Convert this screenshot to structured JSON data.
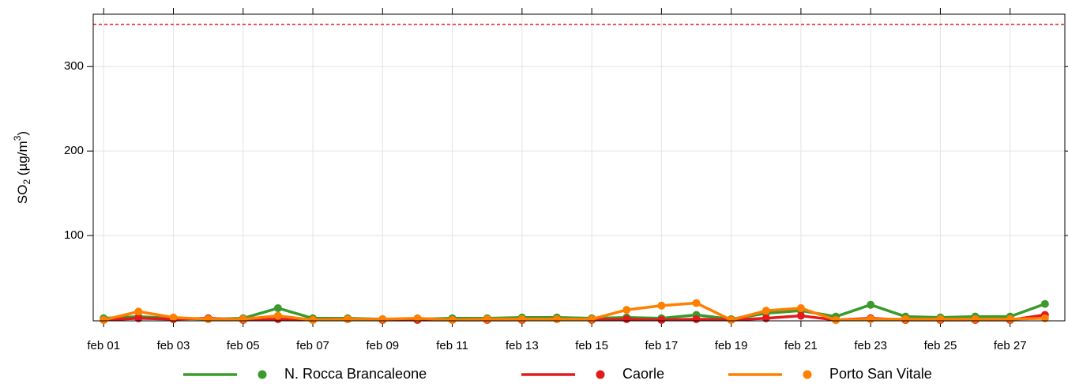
{
  "chart_data": {
    "type": "line",
    "categories": [
      "feb 01",
      null,
      "feb 03",
      null,
      "feb 05",
      null,
      "feb 07",
      null,
      "feb 09",
      null,
      "feb 11",
      null,
      "feb 13",
      null,
      "feb 15",
      null,
      "feb 17",
      null,
      "feb 19",
      null,
      "feb 21",
      null,
      "feb 23",
      null,
      "feb 25",
      null,
      "feb 27",
      null
    ],
    "y_label_parts": [
      "SO",
      "2",
      " (µg/m",
      "3",
      ")"
    ],
    "series": [
      {
        "name": "N. Rocca Brancaleone",
        "color": "#3a9b2c",
        "values": [
          2,
          4,
          2,
          1,
          2,
          14,
          2,
          2,
          1,
          1,
          2,
          2,
          3,
          3,
          2,
          3,
          2,
          6,
          1,
          8,
          11,
          4,
          18,
          4,
          3,
          4,
          4,
          19
        ]
      },
      {
        "name": "Caorle",
        "color": "#e31a1c",
        "values": [
          0,
          2,
          1,
          2,
          0,
          1,
          0,
          1,
          0,
          0,
          0,
          0,
          0,
          1,
          0,
          1,
          0,
          1,
          0,
          2,
          5,
          0,
          2,
          0,
          0,
          0,
          0,
          6
        ]
      },
      {
        "name": "Porto San Vitale",
        "color": "#ff7f00",
        "values": [
          0,
          10,
          3,
          1,
          1,
          5,
          0,
          1,
          1,
          2,
          0,
          1,
          1,
          1,
          1,
          12,
          17,
          20,
          0,
          11,
          14,
          0,
          1,
          1,
          1,
          1,
          1,
          2
        ]
      }
    ],
    "threshold": 350,
    "threshold_color": "#e31a1c",
    "ylim": [
      -1,
      362
    ],
    "yticks": [
      100,
      200,
      300
    ],
    "grid": true
  }
}
